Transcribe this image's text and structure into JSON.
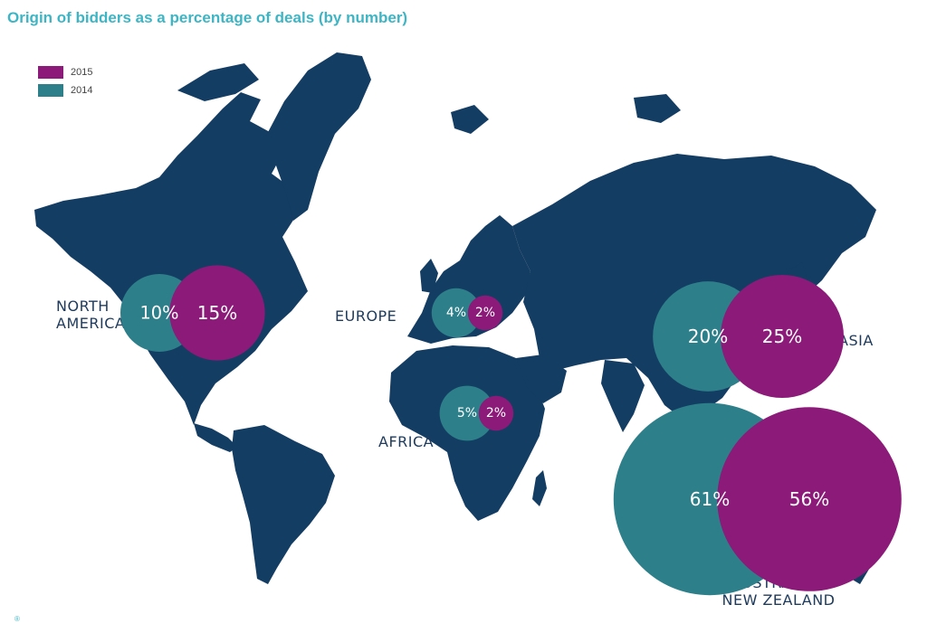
{
  "title": "Origin of bidders as a percentage of deals (by number)",
  "colors": {
    "y2015": "#8b1a78",
    "y2014": "#2d7f8a",
    "land": "#143d63",
    "title": "#3db5c4"
  },
  "legend": [
    {
      "label": "2015",
      "color": "#8b1a78"
    },
    {
      "label": "2014",
      "color": "#2d7f8a"
    }
  ],
  "regions": [
    {
      "name": "NORTH AMERICA",
      "label_lines": [
        "NORTH",
        "AMERICA"
      ],
      "v2014": 10,
      "v2015": 15,
      "text2014": "10%",
      "text2015": "15%"
    },
    {
      "name": "EUROPE",
      "label_lines": [
        "EUROPE"
      ],
      "v2014": 4,
      "v2015": 2,
      "text2014": "4%",
      "text2015": "2%"
    },
    {
      "name": "AFRICA",
      "label_lines": [
        "AFRICA"
      ],
      "v2014": 5,
      "v2015": 2,
      "text2014": "5%",
      "text2015": "2%"
    },
    {
      "name": "ASIA",
      "label_lines": [
        "ASIA"
      ],
      "v2014": 20,
      "v2015": 25,
      "text2014": "20%",
      "text2015": "25%"
    },
    {
      "name": "AUSTRALIA / NEW ZEALAND",
      "label_lines": [
        "AUSTRALIA /",
        "NEW ZEALAND"
      ],
      "v2014": 61,
      "v2015": 56,
      "text2014": "61%",
      "text2015": "56%"
    }
  ],
  "footnote": "®"
}
